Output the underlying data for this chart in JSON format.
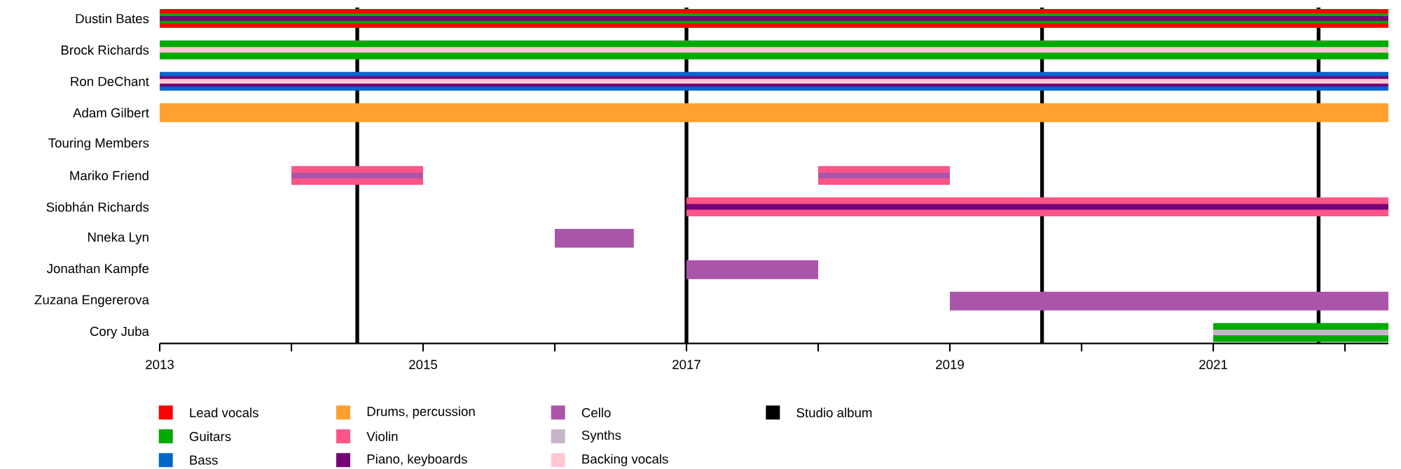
{
  "chart_data": {
    "type": "bar",
    "orientation": "horizontal",
    "legend": "bottom",
    "categories": [
      "Dustin Bates",
      "Brock Richards",
      "Ron DeChant",
      "Adam Gilbert",
      "Touring Members",
      "Mariko Friend",
      "Siobhán Richards",
      "Nneka Lyn",
      "Jonathan Kampfe",
      "Zuzana Engererova",
      "Cory Juba"
    ],
    "xlim": [
      2013,
      2022.33
    ],
    "xticks": [
      2013,
      {
        "value": 2014,
        "label": null
      },
      2015,
      {
        "value": 2016,
        "label": null
      },
      2017,
      {
        "value": 2018,
        "label": null
      },
      2019,
      {
        "value": 2020,
        "label": null
      },
      2021,
      {
        "value": 2022,
        "label": null
      }
    ],
    "ref_lines": [
      {
        "axis": "x",
        "value": 2014.5,
        "label": "Studio album",
        "color": "#000000"
      },
      {
        "axis": "x",
        "value": 2017.0,
        "color": "#000000"
      },
      {
        "axis": "x",
        "value": 2019.7,
        "color": "#000000"
      },
      {
        "axis": "x",
        "value": 2021.8,
        "color": "#000000"
      }
    ],
    "series": [
      {
        "name": "Lead vocals",
        "color": "#ff0000",
        "base": [
          2013,
          null,
          null,
          null,
          null,
          null,
          null,
          null,
          null,
          null,
          null
        ],
        "values": [
          9.33,
          null,
          null,
          null,
          null,
          null,
          null,
          null,
          null,
          null,
          null
        ]
      },
      {
        "name": "Guitars",
        "color": "#00aa00",
        "base": [
          2013,
          2013,
          null,
          null,
          null,
          null,
          null,
          null,
          null,
          null,
          2021
        ],
        "values": [
          9.33,
          9.33,
          null,
          null,
          null,
          null,
          null,
          null,
          null,
          null,
          1.33
        ]
      },
      {
        "name": "Bass",
        "color": "#0066cc",
        "base": [
          null,
          null,
          2013,
          null,
          null,
          null,
          null,
          null,
          null,
          null,
          null
        ],
        "values": [
          null,
          null,
          9.33,
          null,
          null,
          null,
          null,
          null,
          null,
          null,
          null
        ]
      },
      {
        "name": "Drums, percussion",
        "color": "#ffa030",
        "base": [
          null,
          null,
          null,
          2013,
          null,
          null,
          null,
          null,
          null,
          null,
          null
        ],
        "values": [
          null,
          null,
          null,
          9.33,
          null,
          null,
          null,
          null,
          null,
          null,
          null
        ]
      },
      {
        "name": "Violin",
        "color": "#ff5588",
        "base": [
          null,
          null,
          null,
          null,
          null,
          2014,
          2017,
          null,
          null,
          null,
          null
        ],
        "values": [
          null,
          null,
          null,
          null,
          null,
          1,
          5.33,
          null,
          null,
          null,
          null
        ]
      },
      {
        "color": "#ff5588",
        "base": [
          null,
          null,
          null,
          null,
          null,
          2018,
          null,
          null,
          null,
          null,
          null
        ],
        "values": [
          null,
          null,
          null,
          null,
          null,
          1,
          null,
          null,
          null,
          null,
          null
        ]
      },
      {
        "name": "Piano, keyboards",
        "color": "#770077",
        "base": [
          2013,
          null,
          2013,
          null,
          null,
          null,
          2017,
          null,
          null,
          null,
          null
        ],
        "values": [
          9.33,
          null,
          9.33,
          null,
          null,
          null,
          5.33,
          null,
          null,
          null,
          null
        ]
      },
      {
        "name": "Cello",
        "color": "#aa55aa",
        "base": [
          null,
          null,
          null,
          null,
          null,
          2014,
          null,
          2016,
          2017,
          2019,
          null
        ],
        "values": [
          null,
          null,
          null,
          null,
          null,
          1,
          null,
          0.6,
          1,
          3.33,
          null
        ]
      },
      {
        "color": "#aa55aa",
        "base": [
          null,
          null,
          null,
          null,
          null,
          2018,
          null,
          null,
          null,
          null,
          null
        ],
        "values": [
          null,
          null,
          null,
          null,
          null,
          1,
          null,
          null,
          null,
          null,
          null
        ]
      },
      {
        "name": "Synths",
        "color": "#c8b4c8",
        "base": [
          null,
          null,
          null,
          null,
          null,
          null,
          null,
          null,
          null,
          null,
          2021
        ],
        "values": [
          null,
          null,
          null,
          null,
          null,
          null,
          null,
          null,
          null,
          null,
          1.33
        ]
      },
      {
        "name": "Backing vocals",
        "color": "#ffc8d2",
        "base": [
          null,
          2013,
          2013,
          null,
          null,
          null,
          null,
          null,
          null,
          null,
          null
        ],
        "values": [
          null,
          9.33,
          9.33,
          null,
          null,
          null,
          null,
          null,
          null,
          null,
          null
        ]
      }
    ]
  }
}
